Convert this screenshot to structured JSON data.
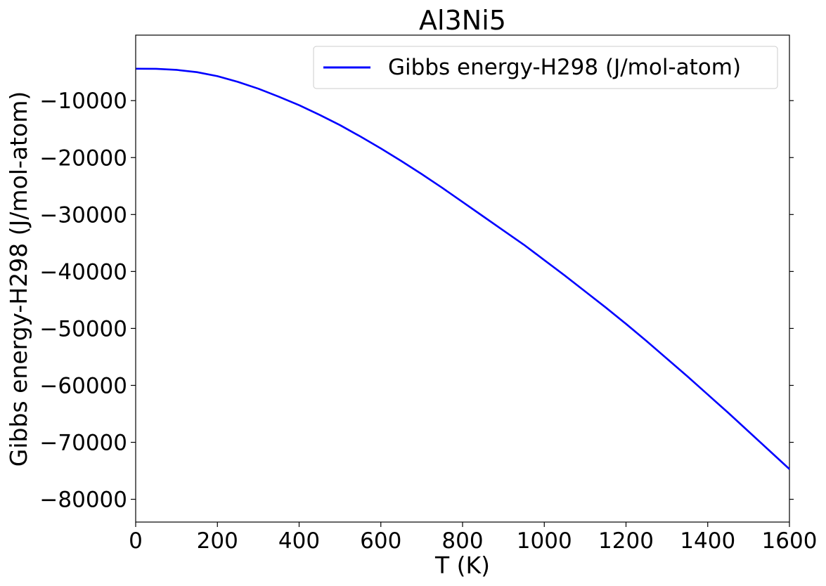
{
  "chart_data": {
    "type": "line",
    "title": "Al3Ni5",
    "xlabel": "T (K)",
    "ylabel": "Gibbs energy-H298 (J/mol-atom)",
    "xlim": [
      0,
      1600
    ],
    "ylim": [
      -84000,
      1500
    ],
    "xticks": [
      0,
      200,
      400,
      600,
      800,
      1000,
      1200,
      1400,
      1600
    ],
    "xtick_labels": [
      "0",
      "200",
      "400",
      "600",
      "800",
      "1000",
      "1200",
      "1400",
      "1600"
    ],
    "yticks": [
      -10000,
      -20000,
      -30000,
      -40000,
      -50000,
      -60000,
      -70000,
      -80000
    ],
    "ytick_labels": [
      "−10000",
      "−20000",
      "−30000",
      "−40000",
      "−50000",
      "−60000",
      "−70000",
      "−80000"
    ],
    "grid": false,
    "legend_position": "top-right",
    "series": [
      {
        "name": "Gibbs energy-H298 (J/mol-atom)",
        "color": "#0000ff",
        "x": [
          1,
          50,
          100,
          150,
          200,
          250,
          300,
          350,
          400,
          450,
          500,
          550,
          600,
          650,
          700,
          750,
          800,
          850,
          900,
          950,
          1000,
          1050,
          1100,
          1150,
          1200,
          1250,
          1300,
          1350,
          1400,
          1450,
          1500,
          1550,
          1600
        ],
        "y": [
          -4400,
          -4420,
          -4600,
          -5000,
          -5700,
          -6700,
          -7900,
          -9300,
          -10800,
          -12500,
          -14300,
          -16300,
          -18400,
          -20600,
          -22900,
          -25300,
          -27800,
          -30300,
          -32800,
          -35300,
          -38000,
          -40700,
          -43500,
          -46300,
          -49200,
          -52200,
          -55300,
          -58400,
          -61600,
          -64800,
          -68100,
          -71400,
          -74700
        ]
      }
    ]
  }
}
